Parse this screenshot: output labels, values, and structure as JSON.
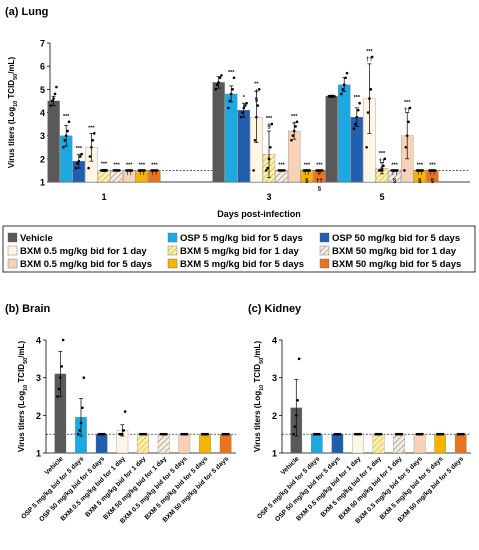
{
  "colors": {
    "vehicle": "#595959",
    "osp5": "#1CA8E0",
    "osp50": "#1F5FAE",
    "bxm05_1": "#FFF6E6",
    "bxm5_1": "#FFF2A8",
    "bxm50_1": "#D9C2A6",
    "bxm05_5": "#F8D2B6",
    "bxm5_5": "#F5B400",
    "bxm50_5": "#E8741E",
    "point": "#000000",
    "error": "#000000",
    "lod": "#000000"
  },
  "groups": [
    {
      "key": "vehicle",
      "label": "Vehicle",
      "pattern": "solid"
    },
    {
      "key": "osp5",
      "label": "OSP 5 mg/kg bid for 5 days",
      "pattern": "solid"
    },
    {
      "key": "osp50",
      "label": "OSP 50 mg/kg bid for 5 days",
      "pattern": "solid"
    },
    {
      "key": "bxm05_1",
      "label": "BXM 0.5 mg/kg bid for 1 day",
      "pattern": "solid"
    },
    {
      "key": "bxm5_1",
      "label": "BXM 5 mg/kg bid for 1 day",
      "pattern": "hatch"
    },
    {
      "key": "bxm50_1",
      "label": "BXM 50 mg/kg bid for 1 day",
      "pattern": "hatch"
    },
    {
      "key": "bxm05_5",
      "label": "BXM 0.5 mg/kg bid for 5 days",
      "pattern": "solid"
    },
    {
      "key": "bxm5_5",
      "label": "BXM 5 mg/kg bid for 5 days",
      "pattern": "solid"
    },
    {
      "key": "bxm50_5",
      "label": "BXM 50 mg/kg bid for 5 days",
      "pattern": "solid"
    }
  ],
  "chart_data": [
    {
      "type": "bar",
      "panel": "(a) Lung",
      "title": "(a) Lung",
      "xlabel": "Days post-infection",
      "ylabel_parts": [
        "Virus titers (Log",
        "10",
        " TCID",
        "50",
        "/mL)"
      ],
      "ylim": [
        1,
        7
      ],
      "yticks": [
        1,
        2,
        3,
        4,
        5,
        6,
        7
      ],
      "lod": 1.5,
      "categories": [
        "1",
        "3",
        "5"
      ],
      "series": [
        {
          "key": "vehicle",
          "values": [
            4.5,
            5.3,
            4.7
          ],
          "errors": [
            0.2,
            0.25,
            0.05
          ],
          "points": [
            [
              4.3,
              4.5,
              4.6,
              4.8,
              5.1
            ],
            [
              5.0,
              5.2,
              5.3,
              5.5,
              5.6
            ],
            [
              4.7,
              4.7,
              4.7,
              4.7,
              4.7
            ]
          ],
          "sig": [
            "",
            "",
            ""
          ]
        },
        {
          "key": "osp5",
          "values": [
            3.0,
            4.8,
            5.2
          ],
          "errors": [
            0.45,
            0.35,
            0.3
          ],
          "points": [
            [
              2.5,
              2.8,
              3.0,
              3.2,
              3.6
            ],
            [
              4.2,
              4.5,
              4.8,
              5.0,
              5.5
            ],
            [
              4.8,
              5.0,
              5.2,
              5.5,
              5.7
            ]
          ],
          "sig": [
            "***",
            "***",
            ""
          ]
        },
        {
          "key": "osp50",
          "values": [
            1.9,
            4.1,
            3.8
          ],
          "errors": [
            0.3,
            0.3,
            0.4
          ],
          "points": [
            [
              1.6,
              1.8,
              1.9,
              2.1,
              2.2
            ],
            [
              3.8,
              4.0,
              4.2,
              4.3,
              4.4
            ],
            [
              3.3,
              3.5,
              3.8,
              4.1,
              4.4
            ]
          ],
          "sig": [
            "***",
            "*",
            "***"
          ]
        },
        {
          "key": "bxm05_1",
          "values": [
            2.5,
            3.8,
            4.6
          ],
          "errors": [
            0.6,
            1.1,
            1.5
          ],
          "points": [
            [
              1.6,
              2.1,
              2.5,
              2.8,
              3.1
            ],
            [
              1.5,
              2.8,
              3.8,
              4.3,
              5.0
            ],
            [
              2.5,
              4.0,
              4.6,
              5.0,
              6.4
            ]
          ],
          "sig": [
            "***",
            "**",
            "***"
          ]
        },
        {
          "key": "bxm5_1",
          "values": [
            1.5,
            2.2,
            1.6
          ],
          "errors": [
            0.05,
            1.0,
            0.25
          ],
          "points": [
            [
              1.5,
              1.5,
              1.5,
              1.5,
              1.5
            ],
            [
              1.5,
              1.6,
              2.0,
              2.5,
              3.5
            ],
            [
              1.5,
              1.5,
              1.5,
              1.7,
              2.0
            ]
          ],
          "sig": [
            "***",
            "***",
            "***"
          ]
        },
        {
          "key": "bxm50_1",
          "values": [
            1.5,
            1.5,
            1.5
          ],
          "errors": [
            0,
            0,
            0
          ],
          "points": [
            [
              1.5,
              1.5,
              1.5,
              1.5,
              1.5
            ],
            [
              1.5,
              1.5,
              1.5,
              1.5,
              1.5
            ],
            [
              1.5,
              1.5,
              1.5,
              1.5,
              1.5
            ]
          ],
          "sig": [
            "***",
            "***",
            "***"
          ]
        },
        {
          "key": "bxm05_5",
          "values": [
            1.5,
            3.2,
            3.0
          ],
          "errors": [
            0,
            0.35,
            1.0
          ],
          "points": [
            [
              1.5,
              1.5,
              1.5,
              1.5,
              1.5
            ],
            [
              2.8,
              3.0,
              3.2,
              3.4,
              3.6
            ],
            [
              1.5,
              2.5,
              3.0,
              3.6,
              4.2
            ]
          ],
          "sig": [
            "***",
            "***",
            "***"
          ]
        },
        {
          "key": "bxm5_5",
          "values": [
            1.5,
            1.5,
            1.5
          ],
          "errors": [
            0,
            0,
            0
          ],
          "points": [
            [
              1.5,
              1.5,
              1.5,
              1.5,
              1.5
            ],
            [
              1.5,
              1.5,
              1.5,
              1.5,
              1.5
            ],
            [
              1.5,
              1.5,
              1.5,
              1.5,
              1.5
            ]
          ],
          "sig": [
            "***",
            "***",
            "***"
          ]
        },
        {
          "key": "bxm50_5",
          "values": [
            1.5,
            1.5,
            1.5
          ],
          "errors": [
            0,
            0,
            0
          ],
          "points": [
            [
              1.5,
              1.5,
              1.5,
              1.5,
              1.5
            ],
            [
              1.5,
              1.5,
              1.5,
              1.5,
              1.5
            ],
            [
              1.5,
              1.5,
              1.5,
              1.5,
              1.5
            ]
          ],
          "sig": [
            "***",
            "***",
            "***"
          ]
        }
      ],
      "annotations": [
        {
          "category": 0,
          "series": 6,
          "text": "††"
        },
        {
          "category": 0,
          "series": 7,
          "text": "††"
        },
        {
          "category": 0,
          "series": 8,
          "text": "††"
        },
        {
          "category": 1,
          "series": 3,
          "text": "†"
        },
        {
          "category": 1,
          "series": 3,
          "text": "§"
        },
        {
          "category": 1,
          "series": 4,
          "text": "§"
        },
        {
          "category": 1,
          "series": 6,
          "text": "†"
        },
        {
          "category": 1,
          "series": 7,
          "text": "††"
        },
        {
          "category": 1,
          "series": 7,
          "text": "§"
        },
        {
          "category": 1,
          "series": 8,
          "text": "#"
        },
        {
          "category": 1,
          "series": 8,
          "text": "††"
        },
        {
          "category": 1,
          "series": 8,
          "text": "§"
        },
        {
          "category": 2,
          "series": 3,
          "text": "††"
        },
        {
          "category": 2,
          "series": 4,
          "text": "††"
        },
        {
          "category": 2,
          "series": 4,
          "text": "§"
        },
        {
          "category": 2,
          "series": 5,
          "text": "††"
        },
        {
          "category": 2,
          "series": 5,
          "text": "§"
        },
        {
          "category": 2,
          "series": 6,
          "text": "††"
        },
        {
          "category": 2,
          "series": 7,
          "text": "††"
        },
        {
          "category": 2,
          "series": 7,
          "text": "§"
        },
        {
          "category": 2,
          "series": 8,
          "text": "††"
        },
        {
          "category": 2,
          "series": 8,
          "text": "§"
        }
      ]
    },
    {
      "type": "bar",
      "panel": "(b) Brain",
      "title": "(b) Brain",
      "ylabel_parts": [
        "Virus titers (Log",
        "10",
        " TCID",
        "50",
        "/mL)"
      ],
      "ylim": [
        1,
        4
      ],
      "yticks": [
        1,
        2,
        3,
        4
      ],
      "lod": 1.5,
      "categories": [
        "Vehicle",
        "OSP 5 mg/kg bid for 5 days",
        "OSP 50 mg/kg bid for 5 days",
        "BXM 0.5 mg/kg bid for 1 day",
        "BXM 5 mg/kg bid for 1 day",
        "BXM 50 mg/kg bid for 1 day",
        "BXM 0.5 mg/kg bid for 5 days",
        "BXM 5 mg/kg bid for 5 days",
        "BXM 50 mg/kg bid for 5 days"
      ],
      "values": [
        3.1,
        1.95,
        1.5,
        1.6,
        1.5,
        1.5,
        1.5,
        1.5,
        1.5
      ],
      "errors": [
        0.6,
        0.5,
        0,
        0.15,
        0,
        0,
        0,
        0,
        0
      ],
      "points": [
        [
          2.5,
          2.7,
          3.0,
          3.3,
          4.0
        ],
        [
          1.5,
          1.6,
          1.8,
          2.2,
          3.0
        ],
        [
          1.5,
          1.5,
          1.5,
          1.5,
          1.5
        ],
        [
          1.5,
          1.5,
          1.5,
          1.6,
          2.1
        ],
        [
          1.5,
          1.5,
          1.5,
          1.5,
          1.5
        ],
        [
          1.5,
          1.5,
          1.5,
          1.5,
          1.5
        ],
        [
          1.5,
          1.5,
          1.5,
          1.5,
          1.5
        ],
        [
          1.5,
          1.5,
          1.5,
          1.5,
          1.5
        ],
        [
          1.5,
          1.5,
          1.5,
          1.5,
          1.5
        ]
      ]
    },
    {
      "type": "bar",
      "panel": "(c) Kidney",
      "title": "(c) Kidney",
      "ylabel_parts": [
        "Virus titers (Log",
        "10",
        " TCID",
        "50",
        "/mL)"
      ],
      "ylim": [
        1,
        4
      ],
      "yticks": [
        1,
        2,
        3,
        4
      ],
      "lod": 1.5,
      "categories": [
        "Vehicle",
        "OSP 5 mg/kg bid for 5 days",
        "OSP 50 mg/kg bid for 5 days",
        "BXM 0.5 mg/kg bid for 1 day",
        "BXM 5 mg/kg bid for 1 day",
        "BXM 50 mg/kg bid for 1 day",
        "BXM 0.5 mg/kg bid for 5 days",
        "BXM 5 mg/kg bid for 5 days",
        "BXM 50 mg/kg bid for 5 days"
      ],
      "values": [
        2.2,
        1.5,
        1.5,
        1.5,
        1.5,
        1.5,
        1.5,
        1.5,
        1.5
      ],
      "errors": [
        0.75,
        0,
        0,
        0,
        0,
        0,
        0,
        0,
        0
      ],
      "points": [
        [
          1.5,
          1.7,
          2.0,
          2.4,
          3.5
        ],
        [
          1.5,
          1.5,
          1.5,
          1.5,
          1.5
        ],
        [
          1.5,
          1.5,
          1.5,
          1.5,
          1.5
        ],
        [
          1.5,
          1.5,
          1.5,
          1.5,
          1.5
        ],
        [
          1.5,
          1.5,
          1.5,
          1.5,
          1.5
        ],
        [
          1.5,
          1.5,
          1.5,
          1.5,
          1.5
        ],
        [
          1.5,
          1.5,
          1.5,
          1.5,
          1.5
        ],
        [
          1.5,
          1.5,
          1.5,
          1.5,
          1.5
        ],
        [
          1.5,
          1.5,
          1.5,
          1.5,
          1.5
        ]
      ]
    }
  ]
}
